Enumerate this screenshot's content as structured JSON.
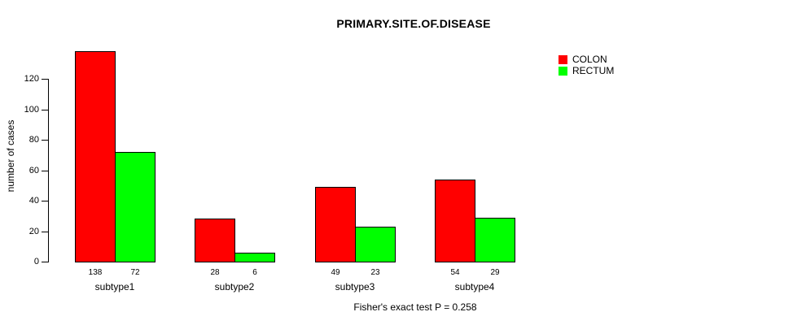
{
  "title": "PRIMARY.SITE.OF.DISEASE",
  "ylabel": "number of cases",
  "caption": "Fisher's exact test P = 0.258",
  "legend": [
    {
      "label": "COLON",
      "color": "#FF0000"
    },
    {
      "label": "RECTUM",
      "color": "#00FF00"
    }
  ],
  "chart_data": {
    "type": "bar",
    "title": "PRIMARY.SITE.OF.DISEASE",
    "xlabel": "",
    "ylabel": "number of cases",
    "categories": [
      "subtype1",
      "subtype2",
      "subtype3",
      "subtype4"
    ],
    "series": [
      {
        "name": "COLON",
        "color": "#FF0000",
        "values": [
          138,
          28,
          49,
          54
        ]
      },
      {
        "name": "RECTUM",
        "color": "#00FF00",
        "values": [
          72,
          6,
          23,
          29
        ]
      }
    ],
    "ylim": [
      0,
      140
    ],
    "yticks": [
      0,
      20,
      40,
      60,
      80,
      100,
      120
    ],
    "grid": false,
    "legend_position": "top-right",
    "bar_value_labels": true,
    "annotation": "Fisher's exact test P = 0.258"
  }
}
